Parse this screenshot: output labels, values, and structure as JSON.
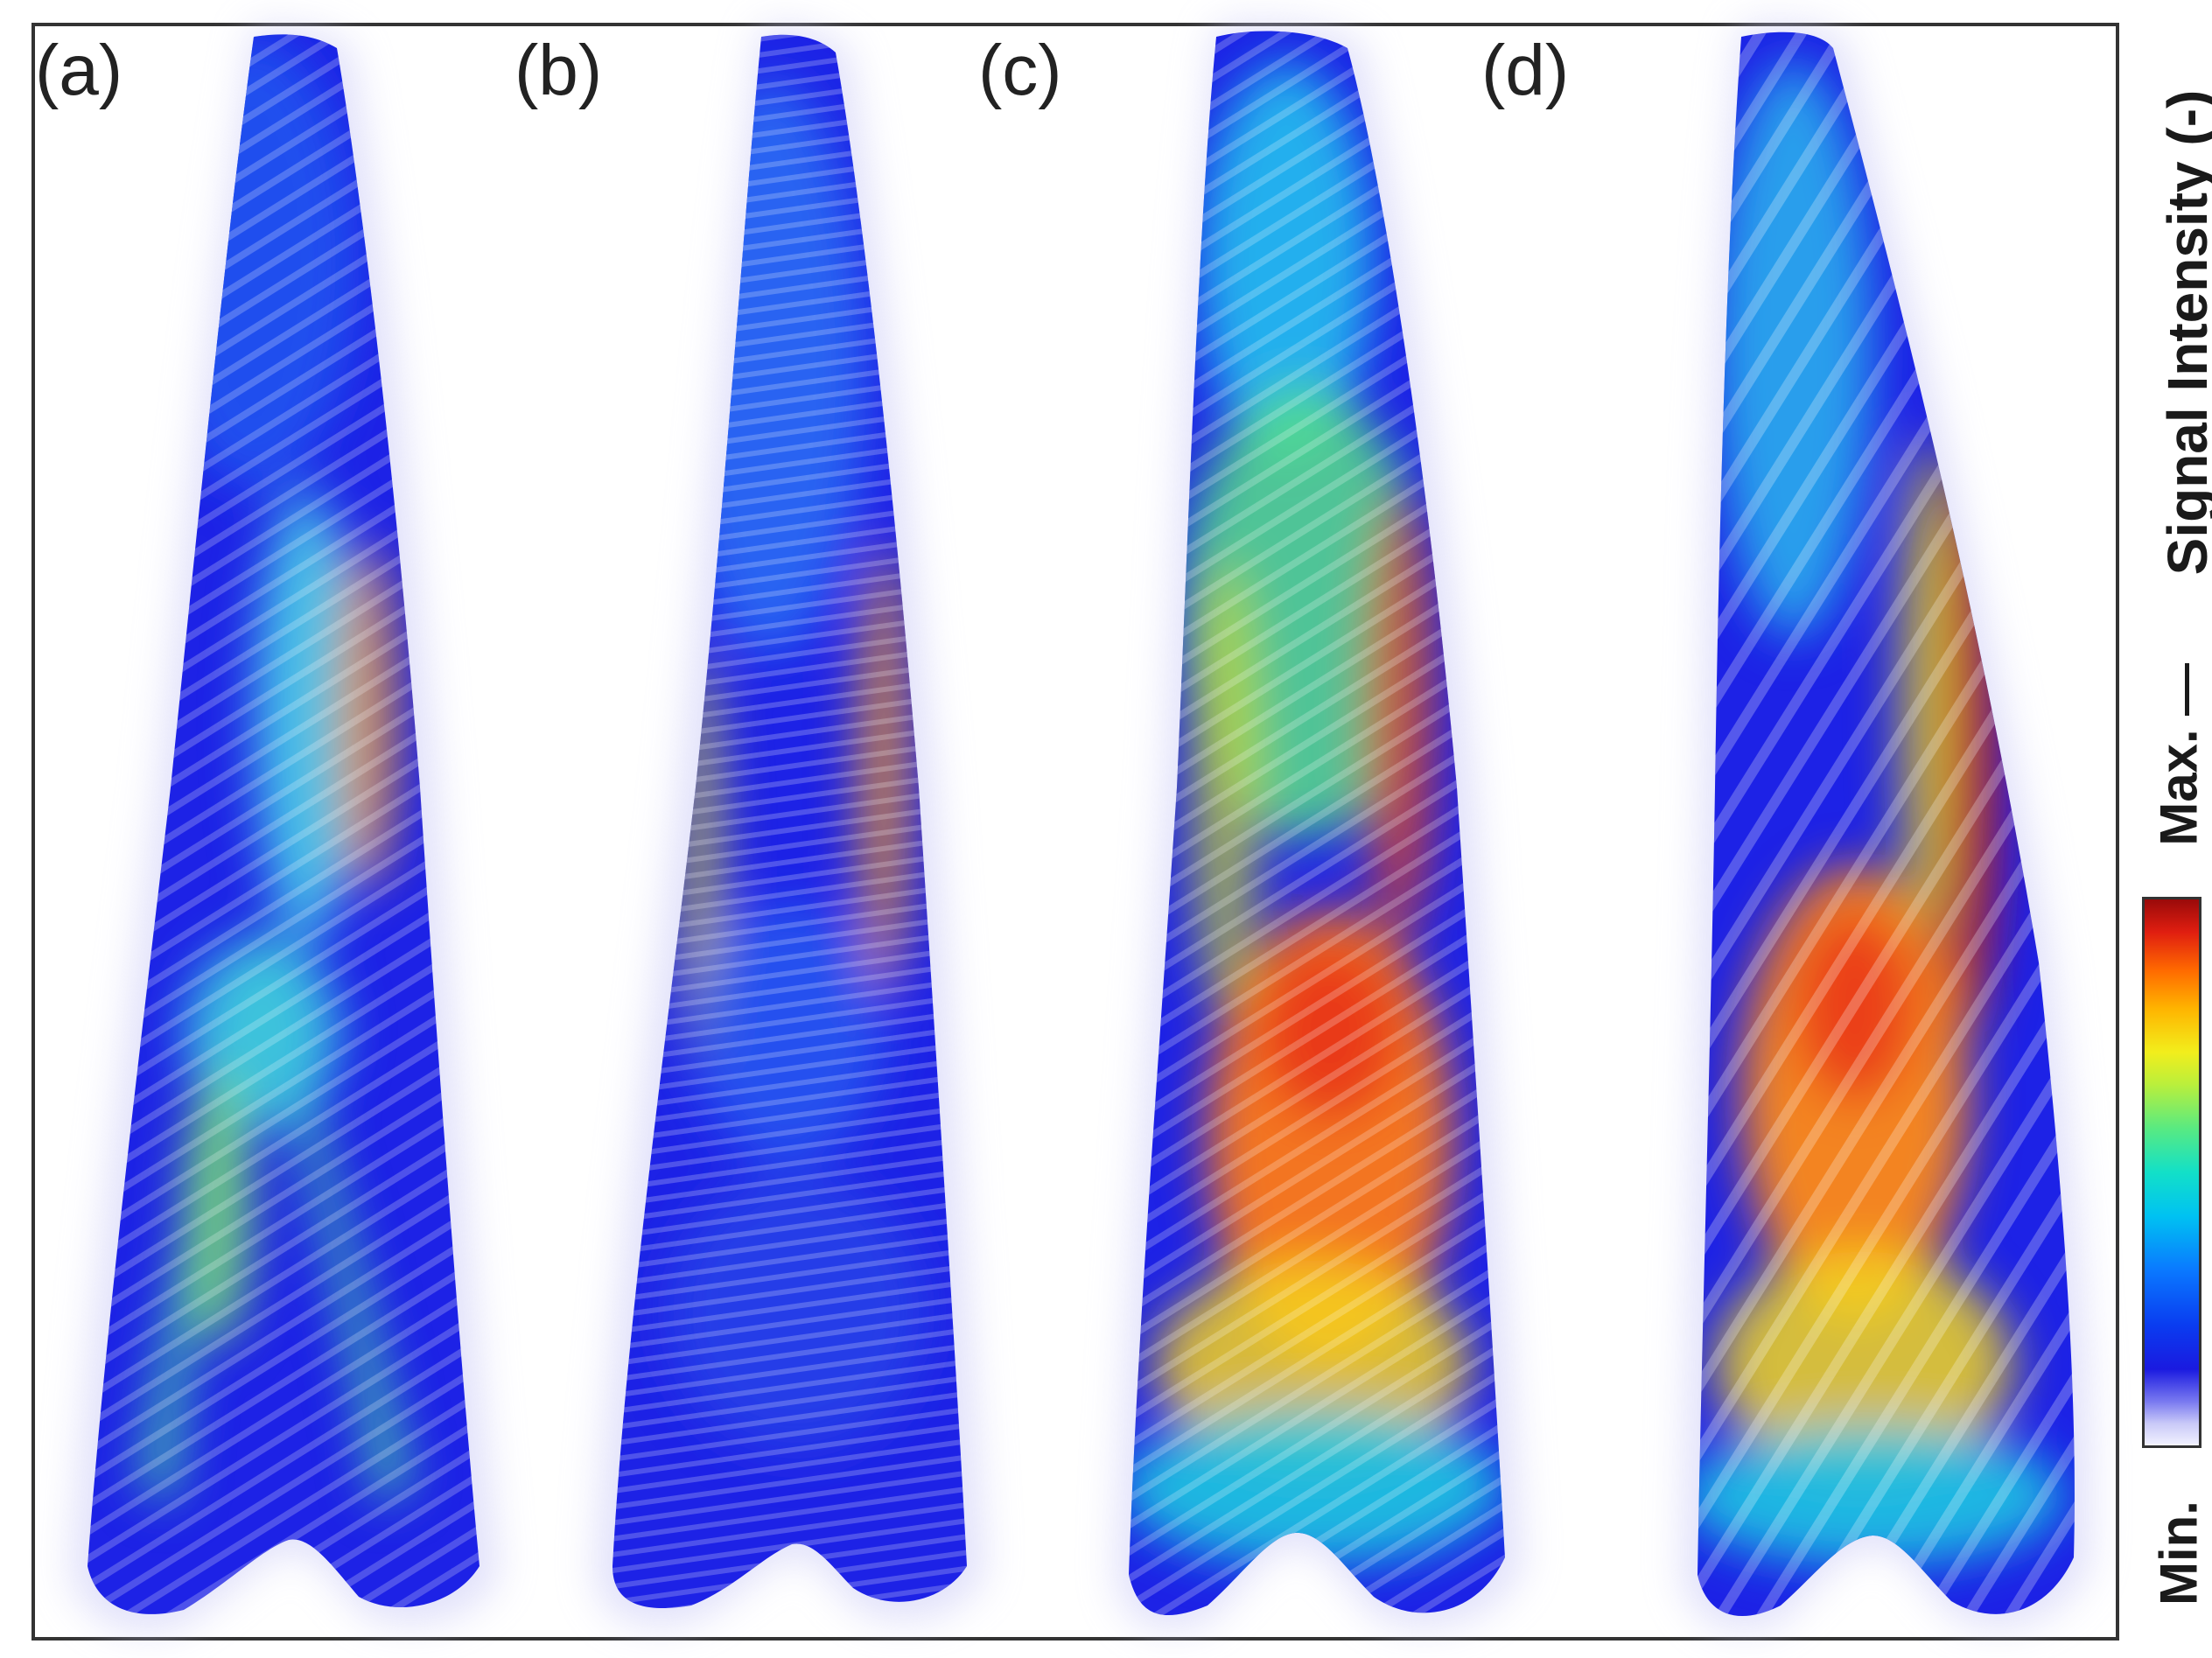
{
  "figure": {
    "panels": [
      {
        "id": "a",
        "label": "(a)"
      },
      {
        "id": "b",
        "label": "(b)"
      },
      {
        "id": "c",
        "label": "(c)"
      },
      {
        "id": "d",
        "label": "(d)"
      }
    ],
    "colorbar": {
      "title": "Signal Intensity (-)",
      "max_label": "Max.",
      "min_label": "Min.",
      "colormap": [
        "#f2f2ff",
        "#1a1ae0",
        "#0a78ff",
        "#00c2f2",
        "#58ea82",
        "#f2ee1c",
        "#ff6a00",
        "#9a0a0a"
      ]
    }
  }
}
